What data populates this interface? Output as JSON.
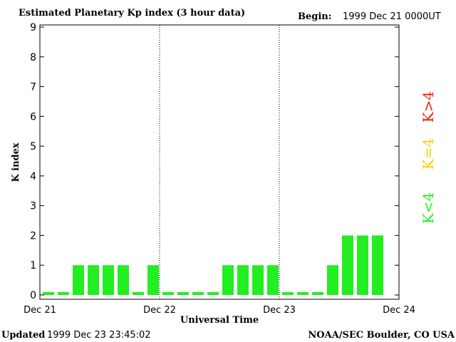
{
  "header": {
    "title": "Estimated Planetary Kp index (3 hour data)",
    "begin_label": "Begin:",
    "begin_value": "1999 Dec 21 0000UT"
  },
  "footer": {
    "updated_label": "Updated",
    "updated_value": "1999 Dec 23 23:45:02",
    "credit": "NOAA/SEC Boulder, CO USA"
  },
  "legend": {
    "high": "K>4",
    "equal": "K=4",
    "low": "K<4"
  },
  "colors": {
    "low": "#22ee22",
    "equal": "#ffcc00",
    "high": "#ee2200",
    "axis": "#000000"
  },
  "chart_data": {
    "type": "bar",
    "title": "Estimated Planetary Kp index (3 hour data)",
    "xlabel": "Universal Time",
    "ylabel": "K index",
    "ylim": [
      0,
      9
    ],
    "yticks": [
      "0",
      "1",
      "2",
      "3",
      "4",
      "5",
      "6",
      "7",
      "8",
      "9"
    ],
    "day_labels": [
      "Dec 21",
      "Dec 22",
      "Dec 23",
      "Dec 24"
    ],
    "intervals_per_day": 8,
    "values": [
      0,
      0,
      1,
      1,
      1,
      1,
      0,
      1,
      0,
      0,
      0,
      0,
      1,
      1,
      1,
      1,
      0,
      0,
      0,
      1,
      2,
      2,
      2
    ]
  }
}
